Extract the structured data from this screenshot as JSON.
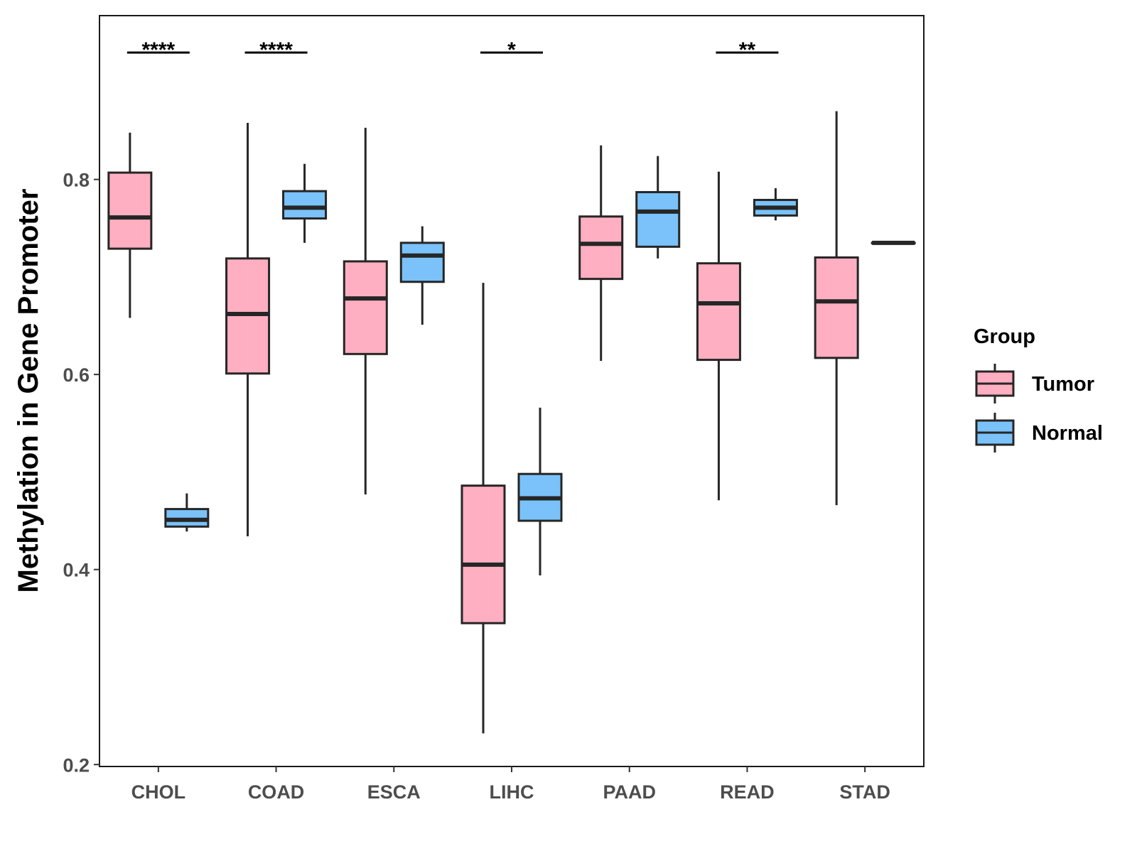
{
  "chart_data": {
    "type": "boxplot",
    "title": "",
    "xlabel": "",
    "ylabel": "Methylation in Gene Promoter",
    "ylim": [
      0.198,
      0.968
    ],
    "yticks": [
      0.2,
      0.4,
      0.6,
      0.8
    ],
    "ytick_labels": [
      "0.2",
      "0.4",
      "0.6",
      "0.8"
    ],
    "categories": [
      "CHOL",
      "COAD",
      "ESCA",
      "LIHC",
      "PAAD",
      "READ",
      "STAD"
    ],
    "legend": {
      "title": "Group",
      "position": "right",
      "entries": [
        {
          "label": "Tumor",
          "color": "#ffafc1"
        },
        {
          "label": "Normal",
          "color": "#7ac2f9"
        }
      ]
    },
    "series": [
      {
        "name": "Tumor",
        "color": "#ffafc1",
        "boxes": [
          {
            "category": "CHOL",
            "lower_whisker": 0.658,
            "q1": 0.729,
            "median": 0.761,
            "q3": 0.807,
            "upper_whisker": 0.848
          },
          {
            "category": "COAD",
            "lower_whisker": 0.434,
            "q1": 0.601,
            "median": 0.662,
            "q3": 0.719,
            "upper_whisker": 0.858
          },
          {
            "category": "ESCA",
            "lower_whisker": 0.477,
            "q1": 0.621,
            "median": 0.678,
            "q3": 0.716,
            "upper_whisker": 0.853
          },
          {
            "category": "LIHC",
            "lower_whisker": 0.232,
            "q1": 0.345,
            "median": 0.405,
            "q3": 0.486,
            "upper_whisker": 0.694
          },
          {
            "category": "PAAD",
            "lower_whisker": 0.614,
            "q1": 0.698,
            "median": 0.734,
            "q3": 0.762,
            "upper_whisker": 0.835
          },
          {
            "category": "READ",
            "lower_whisker": 0.471,
            "q1": 0.615,
            "median": 0.673,
            "q3": 0.714,
            "upper_whisker": 0.808
          },
          {
            "category": "STAD",
            "lower_whisker": 0.466,
            "q1": 0.617,
            "median": 0.675,
            "q3": 0.72,
            "upper_whisker": 0.87
          }
        ]
      },
      {
        "name": "Normal",
        "color": "#7ac2f9",
        "boxes": [
          {
            "category": "CHOL",
            "lower_whisker": 0.439,
            "q1": 0.444,
            "median": 0.451,
            "q3": 0.462,
            "upper_whisker": 0.478
          },
          {
            "category": "COAD",
            "lower_whisker": 0.735,
            "q1": 0.76,
            "median": 0.771,
            "q3": 0.788,
            "upper_whisker": 0.816
          },
          {
            "category": "ESCA",
            "lower_whisker": 0.651,
            "q1": 0.695,
            "median": 0.722,
            "q3": 0.735,
            "upper_whisker": 0.752
          },
          {
            "category": "LIHC",
            "lower_whisker": 0.394,
            "q1": 0.45,
            "median": 0.473,
            "q3": 0.498,
            "upper_whisker": 0.566
          },
          {
            "category": "PAAD",
            "lower_whisker": 0.719,
            "q1": 0.731,
            "median": 0.767,
            "q3": 0.787,
            "upper_whisker": 0.824
          },
          {
            "category": "READ",
            "lower_whisker": 0.758,
            "q1": 0.763,
            "median": 0.771,
            "q3": 0.779,
            "upper_whisker": 0.791
          },
          {
            "category": "STAD",
            "lower_whisker": 0.735,
            "q1": 0.735,
            "median": 0.735,
            "q3": 0.735,
            "upper_whisker": 0.735
          }
        ]
      }
    ],
    "significance": [
      {
        "category": "CHOL",
        "label": "****"
      },
      {
        "category": "COAD",
        "label": "****"
      },
      {
        "category": "LIHC",
        "label": "*"
      },
      {
        "category": "READ",
        "label": "**"
      }
    ]
  }
}
